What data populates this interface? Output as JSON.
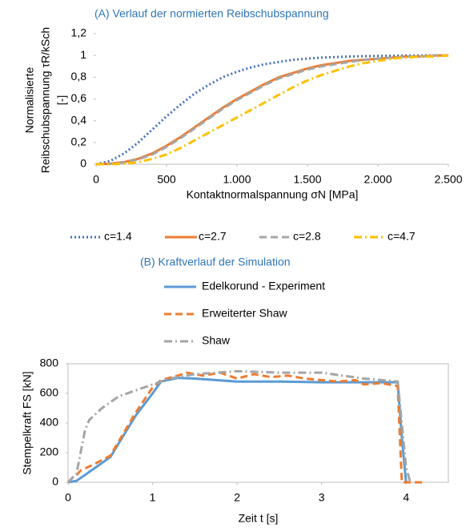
{
  "chart_data": [
    {
      "type": "line",
      "title": "(A) Verlauf der normierten Reibschubspannung",
      "x_label": "Kontaktnormalspannung σN [MPa]",
      "y_label": [
        "Normalisierte",
        "Reibschubspannung τR/kSch",
        "[-]"
      ],
      "xlim": [
        0,
        2500
      ],
      "xticks": [
        0,
        500,
        {
          "value": 1000,
          "label": "1.000"
        },
        {
          "value": 1500,
          "label": "1.500"
        },
        {
          "value": 2000,
          "label": "2.000"
        },
        {
          "value": 2500,
          "label": "2.500"
        }
      ],
      "ylim": [
        0,
        1.2
      ],
      "yticks": [
        0,
        {
          "value": 0.2,
          "label": "0,2"
        },
        {
          "value": 0.4,
          "label": "0,4"
        },
        {
          "value": 0.6,
          "label": "0,6"
        },
        {
          "value": 0.8,
          "label": "0,8"
        },
        1,
        {
          "value": 1.2,
          "label": "1,2"
        }
      ],
      "legend": "bottom",
      "series": [
        {
          "name": "c=1.4",
          "color": "#4472c4",
          "dash": "dotted",
          "x": [
            0,
            100,
            200,
            300,
            400,
            500,
            600,
            700,
            800,
            900,
            1000,
            1100,
            1200,
            1300,
            1400,
            1500,
            1600,
            1700,
            1800,
            1900,
            2000,
            2100,
            2200,
            2300,
            2400,
            2500
          ],
          "values": [
            0,
            0.03,
            0.1,
            0.2,
            0.32,
            0.44,
            0.55,
            0.65,
            0.73,
            0.8,
            0.85,
            0.89,
            0.92,
            0.94,
            0.96,
            0.97,
            0.98,
            0.985,
            0.99,
            0.993,
            0.995,
            0.997,
            0.998,
            0.999,
            1,
            1
          ]
        },
        {
          "name": "c=2.7",
          "color": "#ed7d31",
          "dash": "solid",
          "x": [
            0,
            100,
            200,
            300,
            400,
            500,
            600,
            700,
            800,
            900,
            1000,
            1100,
            1200,
            1300,
            1400,
            1500,
            1600,
            1700,
            1800,
            1900,
            2000,
            2100,
            2200,
            2300,
            2400,
            2500
          ],
          "values": [
            0,
            0.005,
            0.02,
            0.05,
            0.1,
            0.17,
            0.25,
            0.34,
            0.43,
            0.52,
            0.6,
            0.67,
            0.74,
            0.8,
            0.84,
            0.88,
            0.91,
            0.93,
            0.95,
            0.96,
            0.97,
            0.98,
            0.99,
            0.99,
            1,
            1
          ]
        },
        {
          "name": "c=2.8",
          "color": "#a5a5a5",
          "dash": "dashed",
          "x": [
            0,
            100,
            200,
            300,
            400,
            500,
            600,
            700,
            800,
            900,
            1000,
            1100,
            1200,
            1300,
            1400,
            1500,
            1600,
            1700,
            1800,
            1900,
            2000,
            2100,
            2200,
            2300,
            2400,
            2500
          ],
          "values": [
            0,
            0.004,
            0.018,
            0.045,
            0.09,
            0.16,
            0.24,
            0.33,
            0.42,
            0.51,
            0.59,
            0.66,
            0.73,
            0.79,
            0.83,
            0.87,
            0.9,
            0.92,
            0.94,
            0.96,
            0.97,
            0.98,
            0.99,
            0.99,
            1,
            1
          ]
        },
        {
          "name": "c=4.7",
          "color": "#ffc000",
          "dash": "dashdot",
          "x": [
            0,
            100,
            200,
            300,
            400,
            500,
            600,
            700,
            800,
            900,
            1000,
            1100,
            1200,
            1300,
            1400,
            1500,
            1600,
            1700,
            1800,
            1900,
            2000,
            2100,
            2200,
            2300,
            2400,
            2500
          ],
          "values": [
            0,
            0,
            0.005,
            0.02,
            0.05,
            0.09,
            0.15,
            0.22,
            0.29,
            0.36,
            0.43,
            0.5,
            0.57,
            0.64,
            0.71,
            0.77,
            0.82,
            0.86,
            0.9,
            0.93,
            0.95,
            0.97,
            0.98,
            0.99,
            0.99,
            1
          ]
        }
      ]
    },
    {
      "type": "line",
      "title": "(B) Kraftverlauf der Simulation",
      "x_label": "Zeit t [s]",
      "y_label": [
        "Stempelkraft FS [kN]"
      ],
      "xlim": [
        0,
        4.5
      ],
      "xticks": [
        0,
        1,
        2,
        3,
        4
      ],
      "ylim": [
        0,
        800
      ],
      "yticks": [
        0,
        200,
        400,
        600,
        800
      ],
      "legend": "top",
      "series": [
        {
          "name": "Edelkorund - Experiment",
          "color": "#5b9bd5",
          "dash": "solid",
          "x": [
            0,
            0.1,
            0.2,
            0.5,
            0.8,
            1,
            1.1,
            1.3,
            1.5,
            2,
            2.5,
            3,
            3.5,
            3.9,
            3.95,
            4
          ],
          "values": [
            0,
            10,
            50,
            170,
            450,
            600,
            680,
            705,
            700,
            680,
            680,
            675,
            675,
            675,
            300,
            0
          ]
        },
        {
          "name": "Erweiterter Shaw",
          "color": "#ed7d31",
          "dash": "dashed",
          "x": [
            0,
            0.05,
            0.1,
            0.15,
            0.3,
            0.5,
            0.8,
            1,
            1.1,
            1.3,
            1.4,
            1.6,
            1.8,
            2,
            2.2,
            2.4,
            2.6,
            2.8,
            3,
            3.2,
            3.4,
            3.5,
            3.7,
            3.9,
            3.95,
            4.2
          ],
          "values": [
            0,
            30,
            50,
            80,
            120,
            180,
            470,
            640,
            690,
            720,
            740,
            720,
            740,
            700,
            730,
            710,
            720,
            700,
            690,
            680,
            690,
            660,
            670,
            650,
            0,
            0
          ]
        },
        {
          "name": "Shaw",
          "color": "#a5a5a5",
          "dash": "dashdot",
          "x": [
            0,
            0.1,
            0.2,
            0.25,
            0.4,
            0.6,
            0.8,
            1,
            1.2,
            1.5,
            2,
            2.5,
            3,
            3.5,
            3.9,
            4,
            4.05
          ],
          "values": [
            0,
            60,
            350,
            420,
            500,
            580,
            620,
            660,
            700,
            730,
            750,
            740,
            740,
            700,
            680,
            100,
            0
          ]
        }
      ]
    }
  ]
}
